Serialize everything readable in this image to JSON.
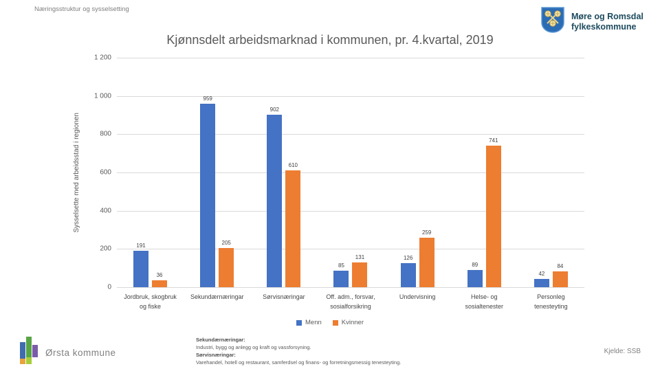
{
  "page": {
    "header": "Næringsstruktur og sysselsetting",
    "title": "Kjønnsdelt arbeidsmarknad i kommunen, pr. 4.kvartal, 2019"
  },
  "org_logo": {
    "name": "Møre og Romsdal fylkeskommune",
    "line1": "Møre og Romsdal",
    "line2": "fylkeskommune",
    "shield_color": "#2b6cb5",
    "text_color": "#1d4a5e"
  },
  "chart_data": {
    "type": "bar",
    "title": "Kjønnsdelt arbeidsmarknad i kommunen, pr. 4.kvartal, 2019",
    "xlabel": "",
    "ylabel": "Sysselsette med arbeidsstad i regionen",
    "ylim": [
      0,
      1200
    ],
    "grid": true,
    "legend_position": "bottom",
    "categories": [
      "Jordbruk, skogbruk\nog fiske",
      "Sekundærnæringar",
      "Sørvisnæringar",
      "Off. adm., forsvar,\nsosialforsikring",
      "Undervisning",
      "Helse- og\nsosialtenester",
      "Personleg\ntenesteyting"
    ],
    "series": [
      {
        "name": "Menn",
        "color": "#4472C4",
        "values": [
          191,
          959,
          902,
          85,
          126,
          89,
          42
        ]
      },
      {
        "name": "Kvinner",
        "color": "#ED7D31",
        "values": [
          36,
          205,
          610,
          131,
          259,
          741,
          84
        ]
      }
    ],
    "yticks": [
      {
        "label": "1 200",
        "value": 1200
      },
      {
        "label": "1 000",
        "value": 1000
      },
      {
        "label": "800",
        "value": 800
      },
      {
        "label": "600",
        "value": 600
      },
      {
        "label": "400",
        "value": 400
      },
      {
        "label": "200",
        "value": 200
      },
      {
        "label": "0",
        "value": 0
      }
    ]
  },
  "footer": {
    "municipality": "Ørsta kommune",
    "notes": [
      {
        "label": "Sekundærnæringar:",
        "text": "Industri, bygg og anlegg og kraft og vassforsyning."
      },
      {
        "label": "Sørvisnæringar:",
        "text": "Varehandel, hotell og restaurant, samferdsel og finans- og forretningsmessig tenesteyting."
      }
    ],
    "source": "Kjelde: SSB"
  }
}
